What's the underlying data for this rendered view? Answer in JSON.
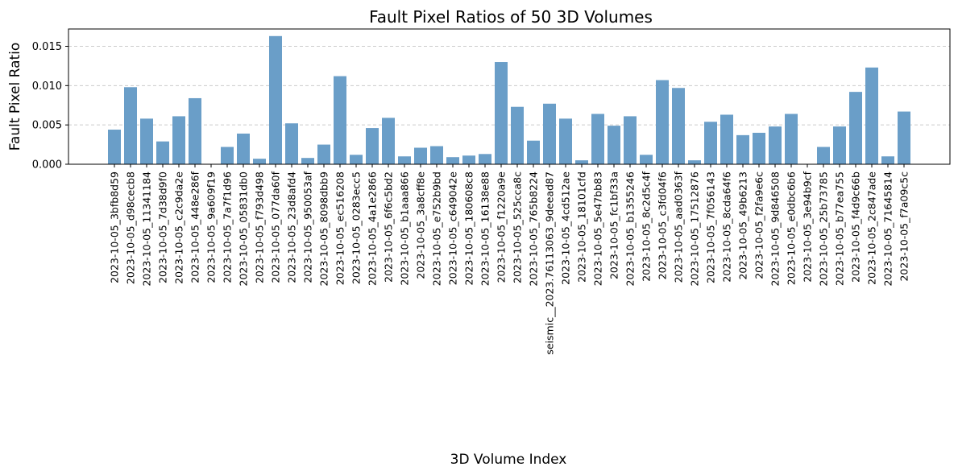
{
  "chart_data": {
    "type": "bar",
    "title": "Fault Pixel Ratios of 50 3D Volumes",
    "xlabel": "3D Volume Index",
    "ylabel": "Fault Pixel Ratio",
    "ylim": [
      0,
      0.0172
    ],
    "yticks": [
      "0.000",
      "0.005",
      "0.010",
      "0.015"
    ],
    "ytick_values": [
      0,
      0.005,
      0.01,
      0.015
    ],
    "grid": "y-dashed",
    "bar_color": "#6a9ec8",
    "categories": [
      "2023-10-05_3bfb8d59",
      "2023-10-05_d98cecb8",
      "2023-10-05_11341184",
      "2023-10-05_7d38d9f0",
      "2023-10-05_c2c9da2e",
      "2023-10-05_448e286f",
      "2023-10-05_9a609f19",
      "2023-10-05_7a7f1d96",
      "2023-10-05_05831db0",
      "2023-10-05_f793d498",
      "2023-10-05_077da60f",
      "2023-10-05_23d8afd4",
      "2023-10-05_950053af",
      "2023-10-05_8098dbb9",
      "2023-10-05_ec516208",
      "2023-10-05_0283ecc5",
      "2023-10-05_4a1e2866",
      "2023-10-05_6f6c5bd2",
      "2023-10-05_b1aaa866",
      "2023-10-05_3a8cff8e",
      "2023-10-05_e752b9bd",
      "2023-10-05_c649042e",
      "2023-10-05_180608c8",
      "2023-10-05_16138e88",
      "2023-10-05_f1220a9e",
      "2023-10-05_525cca8c",
      "2023-10-05_765b8224",
      "seismic__2023.76113063_9deead87",
      "2023-10-05_4cd512ae",
      "2023-10-05_18101cfd",
      "2023-10-05_5e47bb83",
      "2023-10-05_fc1bf33a",
      "2023-10-05_b1355246",
      "2023-10-05_8c2d5c4f",
      "2023-10-05_c3fd04f6",
      "2023-10-05_aad0363f",
      "2023-10-05_17512876",
      "2023-10-05_7f056143",
      "2023-10-05_8cda64f6",
      "2023-10-05_49b6213",
      "2023-10-05_f2fa9e6c",
      "2023-10-05_9d846508",
      "2023-10-05_e0dbc6b6",
      "2023-10-05_3e94b9cf",
      "2023-10-05_25b73785",
      "2023-10-05_b77ea755",
      "2023-10-05_f4d9c66b",
      "2023-10-05_2c847ade",
      "2023-10-05_71645814",
      "2023-10-05_f7a09c5c"
    ],
    "values": [
      0.0044,
      0.0098,
      0.0058,
      0.0029,
      0.0061,
      0.0084,
      0.0,
      0.0022,
      0.0039,
      0.0007,
      0.0163,
      0.0052,
      0.0008,
      0.0025,
      0.0112,
      0.0012,
      0.0046,
      0.0059,
      0.001,
      0.0021,
      0.0023,
      0.0009,
      0.0011,
      0.0013,
      0.013,
      0.0073,
      0.003,
      0.0077,
      0.0058,
      0.0005,
      0.0064,
      0.0049,
      0.0061,
      0.0012,
      0.0107,
      0.0097,
      0.0005,
      0.0054,
      0.0063,
      0.0037,
      0.004,
      0.0048,
      0.0064,
      0.0,
      0.0022,
      0.0048,
      0.0092,
      0.0123,
      0.001,
      0.0067
    ]
  }
}
